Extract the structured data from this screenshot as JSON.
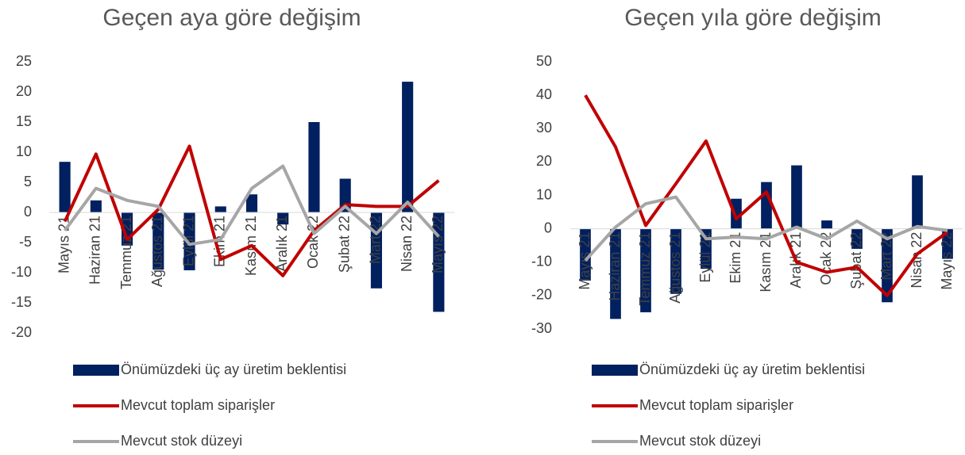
{
  "chart_data": [
    {
      "type": "combo",
      "title": "Geçen aya göre değişim",
      "categories": [
        "Mayıs 21",
        "Haziran 21",
        "Temmuz 21",
        "Ağustos 21",
        "Eylül 21",
        "Ekim 21",
        "Kasım 21",
        "Aralık 21",
        "Ocak 22",
        "Şubat 22",
        "Mart 22",
        "Nisan 22",
        "Mayıs 22"
      ],
      "ylim": [
        -20,
        25
      ],
      "yticks": [
        -20,
        -15,
        -10,
        -5,
        0,
        5,
        10,
        15,
        20,
        25
      ],
      "series": [
        {
          "name": "Önümüzdeki üç ay üretim beklentisi",
          "type": "bar",
          "color": "#002060",
          "values": [
            8.4,
            2,
            -5.5,
            -9.5,
            -9.6,
            1,
            3,
            -2,
            15,
            5.6,
            -12.6,
            21.7,
            -16.5
          ]
        },
        {
          "name": "Mevcut toplam siparişler",
          "type": "line",
          "color": "#c00000",
          "values": [
            -1.5,
            9.7,
            -4.5,
            0.5,
            11,
            -7.8,
            -5.5,
            -10.5,
            -3,
            1.3,
            1,
            1,
            5.3
          ]
        },
        {
          "name": "Mevcut stok düzeyi",
          "type": "line",
          "color": "#a6a6a6",
          "values": [
            -3,
            4,
            2,
            1,
            -5.3,
            -4.5,
            4,
            7.7,
            -3.5,
            1,
            -3.5,
            1.7,
            -4
          ]
        }
      ]
    },
    {
      "type": "combo",
      "title": "Geçen yıla göre değişim",
      "categories": [
        "Mayıs 21",
        "Haziran 21",
        "Temmuz 21",
        "Ağustos 21",
        "Eylül 21",
        "Ekim 21",
        "Kasım 21",
        "Aralık 21",
        "Ocak 22",
        "Şubat 22",
        "Mart 22",
        "Nisan 22",
        "Mayıs 22"
      ],
      "ylim": [
        -30,
        50
      ],
      "yticks": [
        -30,
        -20,
        -10,
        0,
        10,
        20,
        30,
        40,
        50
      ],
      "series": [
        {
          "name": "Önümüzdeki üç ay üretim beklentisi",
          "type": "bar",
          "color": "#002060",
          "values": [
            -15.5,
            -27,
            -25,
            -19.5,
            -12,
            9,
            14,
            19,
            2.5,
            -6,
            -22,
            16,
            -9
          ]
        },
        {
          "name": "Mevcut toplam siparişler",
          "type": "line",
          "color": "#c00000",
          "values": [
            40,
            24.5,
            1,
            13.5,
            26.3,
            3,
            11,
            -10,
            -13,
            -11.5,
            -20,
            -7.5,
            -1
          ]
        },
        {
          "name": "Mevcut stok düzeyi",
          "type": "line",
          "color": "#a6a6a6",
          "values": [
            -9.5,
            0.5,
            7.5,
            9.5,
            -3,
            -2.5,
            -3,
            0.5,
            -3,
            2.3,
            -3,
            0.7,
            -0.5
          ]
        }
      ]
    }
  ]
}
